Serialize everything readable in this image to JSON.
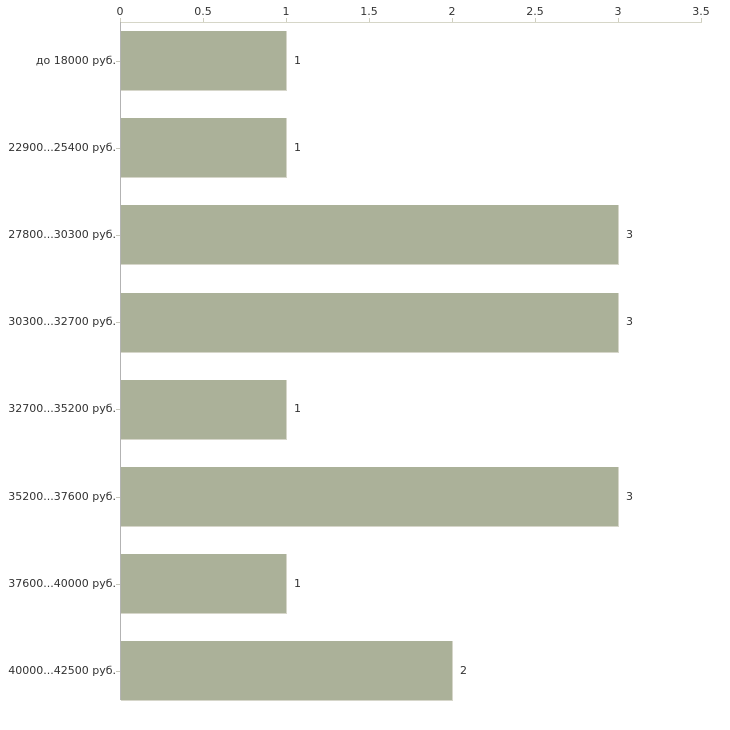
{
  "chart_data": {
    "type": "bar",
    "orientation": "horizontal",
    "title": "",
    "xlabel": "",
    "ylabel": "",
    "categories": [
      "до 18000 руб.",
      "22900...25400 руб.",
      "27800...30300 руб.",
      "30300...32700 руб.",
      "32700...35200 руб.",
      "35200...37600 руб.",
      "37600...40000 руб.",
      "40000...42500 руб."
    ],
    "values": [
      1,
      1,
      3,
      3,
      1,
      3,
      1,
      2
    ],
    "value_labels": [
      "1",
      "1",
      "3",
      "3",
      "1",
      "3",
      "1",
      "2"
    ],
    "xlim": [
      0,
      3.5
    ],
    "x_ticks": [
      0,
      0.5,
      1,
      1.5,
      2,
      2.5,
      3,
      3.5
    ],
    "x_tick_labels": [
      "0",
      "0.5",
      "1",
      "1.5",
      "2",
      "2.5",
      "3",
      "3.5"
    ],
    "grid": false,
    "legend": null,
    "colors": {
      "bar": "#abb199",
      "bar_edge": "#d6d6ca",
      "axis_top": "#d6d6c8",
      "axis_left": "#b3b3b3",
      "tick": "#cfcfc0",
      "text": "#333333",
      "background": "#ffffff"
    }
  }
}
